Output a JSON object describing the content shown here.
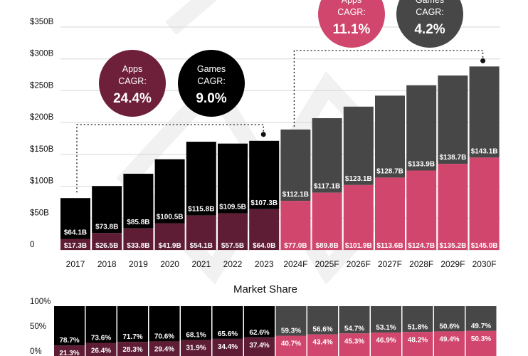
{
  "chart_data": [
    {
      "type": "bar",
      "stacked": true,
      "categories": [
        "2017",
        "2018",
        "2019",
        "2020",
        "2021",
        "2022",
        "2023",
        "2024F",
        "2025F",
        "2026F",
        "2027F",
        "2028F",
        "2029F",
        "2030F"
      ],
      "series": [],
      "value_labels": {
        "apps": [
          "$17.3B",
          "$26.5B",
          "$33.8B",
          "$41.9B",
          "$54.1B",
          "$57.5B",
          "$64.0B",
          "$77.0B",
          "$89.8B",
          "$101.9B",
          "$113.6B",
          "$124.7B",
          "$135.2B",
          "$145.0B"
        ],
        "games": [
          "$64.1B",
          "$73.8B",
          "$85.8B",
          "$100.5B",
          "$115.8B",
          "$109.5B",
          "$107.3B",
          "$112.1B",
          "$117.1B",
          "$123.1B",
          "$128.7B",
          "$133.9B",
          "$138.7B",
          "$143.1B"
        ]
      },
      "apps_values": [
        17.3,
        26.5,
        33.8,
        41.9,
        54.1,
        57.5,
        64.0,
        77.0,
        89.8,
        101.9,
        113.6,
        124.7,
        135.2,
        145.0
      ],
      "games_values": [
        64.1,
        73.8,
        85.8,
        100.5,
        115.8,
        109.5,
        107.3,
        112.1,
        117.1,
        123.1,
        128.7,
        133.9,
        138.7,
        143.1
      ],
      "y_ticks": [
        "0",
        "$50B",
        "$100B",
        "$150B",
        "$200B",
        "$250B",
        "$300B",
        "$350B"
      ],
      "y_tick_values": [
        0,
        50,
        100,
        150,
        200,
        250,
        300,
        350
      ],
      "ylim": [
        0,
        370
      ],
      "grid": true,
      "colors": {
        "apps_historical": "#5e1d34",
        "games_historical": "#000000",
        "apps_forecast": "#d1466c",
        "games_forecast": "#474747",
        "label_text": "#ffffff"
      },
      "annotations": [
        {
          "line1": "Apps",
          "line2": "CAGR:",
          "value": "24.4%",
          "color": "#6e1f3a"
        },
        {
          "line1": "Games",
          "line2": "CAGR:",
          "value": "9.0%",
          "color": "#000000"
        },
        {
          "line1": "Apps",
          "line2": "CAGR:",
          "value": "11.1%",
          "color": "#d1466c"
        },
        {
          "line1": "Games",
          "line2": "CAGR:",
          "value": "4.2%",
          "color": "#474747"
        }
      ]
    },
    {
      "type": "bar",
      "stacked": true,
      "title": "Market Share",
      "categories": [
        "2017",
        "2018",
        "2019",
        "2020",
        "2021",
        "2022",
        "2023",
        "2024F",
        "2025F",
        "2026F",
        "2027F",
        "2028F",
        "2029F",
        "2030F"
      ],
      "games_share": [
        78.7,
        73.6,
        71.7,
        70.6,
        68.1,
        65.6,
        62.6,
        59.3,
        56.6,
        54.7,
        53.1,
        51.8,
        50.6,
        49.7
      ],
      "games_share_labels": [
        "78.7%",
        "73.6%",
        "71.7%",
        "70.6%",
        "68.1%",
        "65.6%",
        "62.6%",
        "59.3%",
        "56.6%",
        "54.7%",
        "53.1%",
        "51.8%",
        "50.6%",
        "49.7%"
      ],
      "apps_share_labels": [
        "21.3%",
        "26.4%",
        "28.3%",
        "29.4%",
        "31.9%",
        "34.4%",
        "37.4%",
        "40.7%",
        "43.4%",
        "45.3%",
        "46.9%",
        "48.2%",
        "49.4%",
        "50.3%"
      ],
      "y_ticks": [
        "0%",
        "50%",
        "100%"
      ],
      "y_tick_values": [
        0,
        50,
        100
      ]
    }
  ]
}
